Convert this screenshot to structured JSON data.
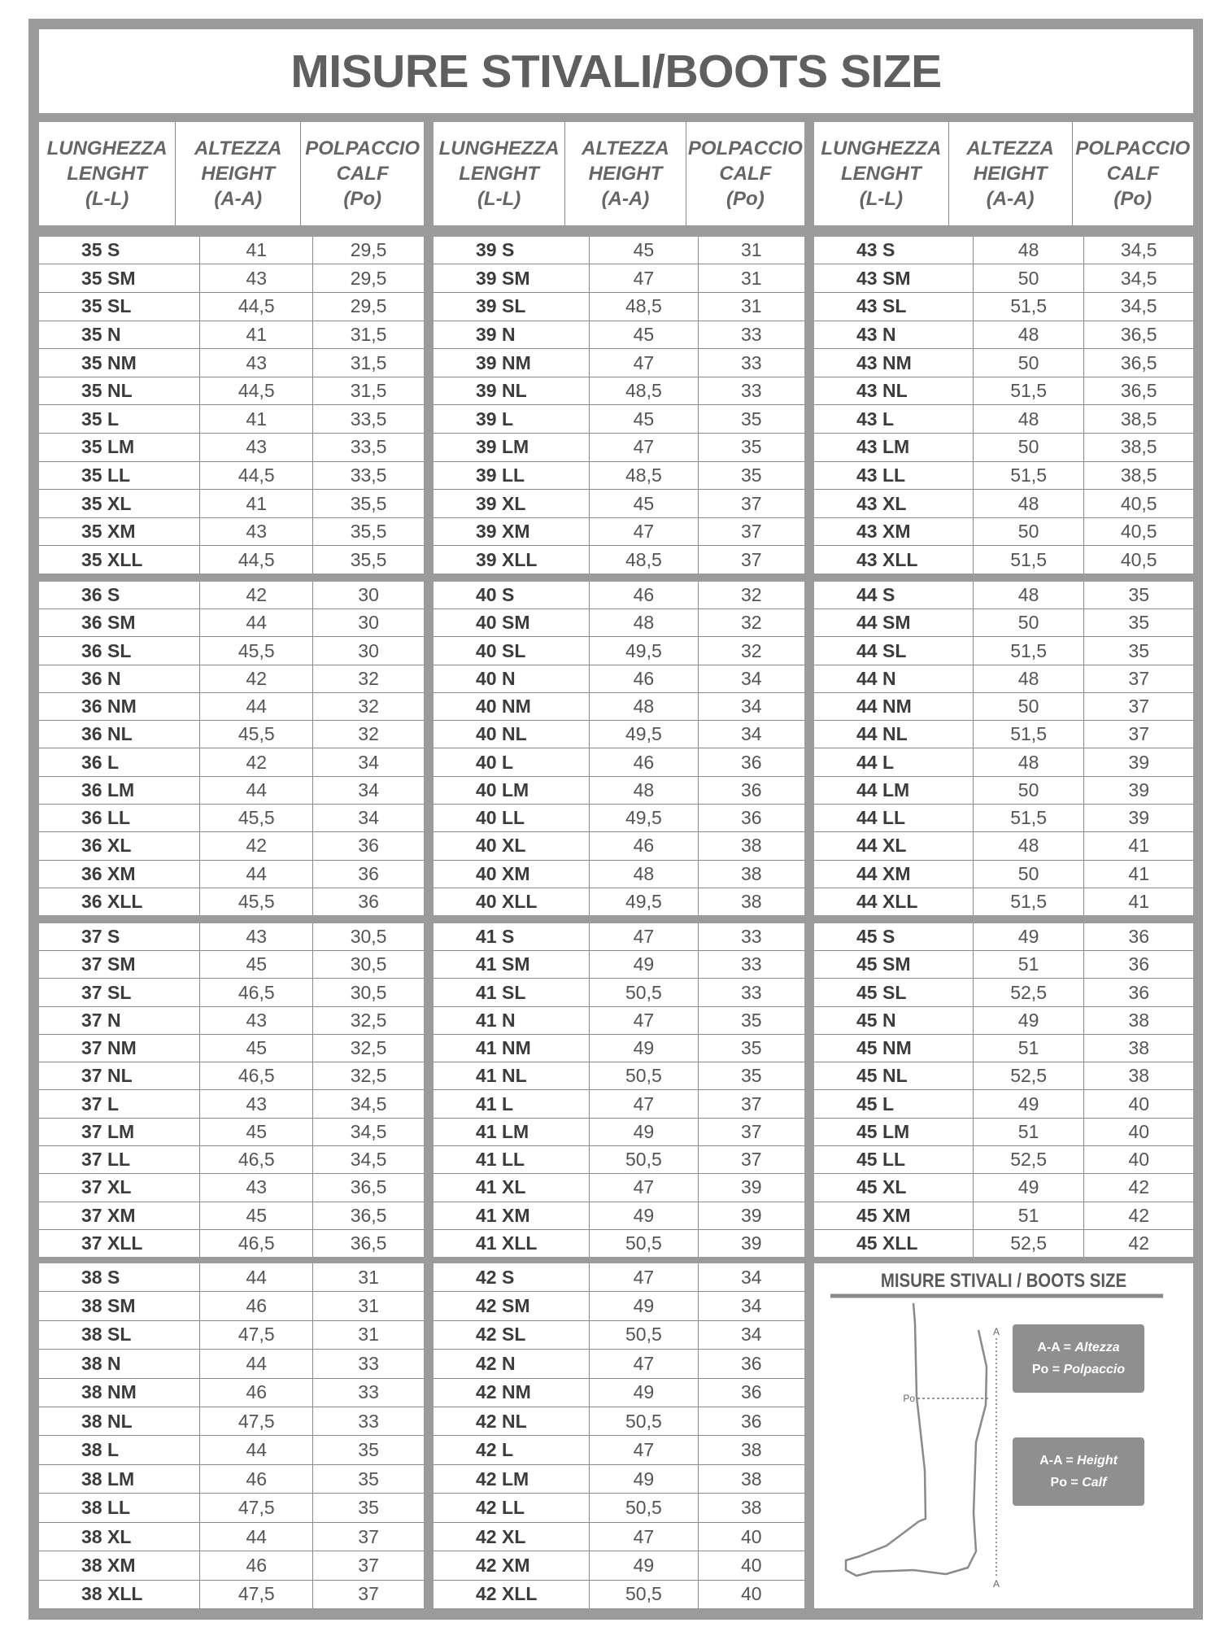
{
  "title": "MISURE STIVALI/BOOTS SIZE",
  "headers": [
    [
      "LUNGHEZZA",
      "LENGHT",
      "(L-L)"
    ],
    [
      "ALTEZZA",
      "HEIGHT",
      "(A-A)"
    ],
    [
      "POLPACCIO",
      "CALF",
      "(Po)"
    ]
  ],
  "colors": {
    "frame": "#9b9b9b",
    "text": "#5f5f5f",
    "legend_box": "#8f8f90"
  },
  "blocks": [
    [
      [
        "35 S",
        "41",
        "29,5"
      ],
      [
        "35 SM",
        "43",
        "29,5"
      ],
      [
        "35 SL",
        "44,5",
        "29,5"
      ],
      [
        "35 N",
        "41",
        "31,5"
      ],
      [
        "35 NM",
        "43",
        "31,5"
      ],
      [
        "35 NL",
        "44,5",
        "31,5"
      ],
      [
        "35 L",
        "41",
        "33,5"
      ],
      [
        "35 LM",
        "43",
        "33,5"
      ],
      [
        "35 LL",
        "44,5",
        "33,5"
      ],
      [
        "35 XL",
        "41",
        "35,5"
      ],
      [
        "35 XM",
        "43",
        "35,5"
      ],
      [
        "35 XLL",
        "44,5",
        "35,5"
      ]
    ],
    [
      [
        "36 S",
        "42",
        "30"
      ],
      [
        "36 SM",
        "44",
        "30"
      ],
      [
        "36 SL",
        "45,5",
        "30"
      ],
      [
        "36 N",
        "42",
        "32"
      ],
      [
        "36 NM",
        "44",
        "32"
      ],
      [
        "36 NL",
        "45,5",
        "32"
      ],
      [
        "36 L",
        "42",
        "34"
      ],
      [
        "36 LM",
        "44",
        "34"
      ],
      [
        "36 LL",
        "45,5",
        "34"
      ],
      [
        "36 XL",
        "42",
        "36"
      ],
      [
        "36 XM",
        "44",
        "36"
      ],
      [
        "36 XLL",
        "45,5",
        "36"
      ]
    ],
    [
      [
        "37 S",
        "43",
        "30,5"
      ],
      [
        "37 SM",
        "45",
        "30,5"
      ],
      [
        "37 SL",
        "46,5",
        "30,5"
      ],
      [
        "37 N",
        "43",
        "32,5"
      ],
      [
        "37 NM",
        "45",
        "32,5"
      ],
      [
        "37 NL",
        "46,5",
        "32,5"
      ],
      [
        "37 L",
        "43",
        "34,5"
      ],
      [
        "37 LM",
        "45",
        "34,5"
      ],
      [
        "37 LL",
        "46,5",
        "34,5"
      ],
      [
        "37 XL",
        "43",
        "36,5"
      ],
      [
        "37 XM",
        "45",
        "36,5"
      ],
      [
        "37 XLL",
        "46,5",
        "36,5"
      ]
    ],
    [
      [
        "38 S",
        "44",
        "31"
      ],
      [
        "38 SM",
        "46",
        "31"
      ],
      [
        "38 SL",
        "47,5",
        "31"
      ],
      [
        "38 N",
        "44",
        "33"
      ],
      [
        "38 NM",
        "46",
        "33"
      ],
      [
        "38 NL",
        "47,5",
        "33"
      ],
      [
        "38 L",
        "44",
        "35"
      ],
      [
        "38 LM",
        "46",
        "35"
      ],
      [
        "38 LL",
        "47,5",
        "35"
      ],
      [
        "38 XL",
        "44",
        "37"
      ],
      [
        "38 XM",
        "46",
        "37"
      ],
      [
        "38 XLL",
        "47,5",
        "37"
      ]
    ],
    [
      [
        "39 S",
        "45",
        "31"
      ],
      [
        "39 SM",
        "47",
        "31"
      ],
      [
        "39 SL",
        "48,5",
        "31"
      ],
      [
        "39 N",
        "45",
        "33"
      ],
      [
        "39 NM",
        "47",
        "33"
      ],
      [
        "39 NL",
        "48,5",
        "33"
      ],
      [
        "39 L",
        "45",
        "35"
      ],
      [
        "39 LM",
        "47",
        "35"
      ],
      [
        "39 LL",
        "48,5",
        "35"
      ],
      [
        "39 XL",
        "45",
        "37"
      ],
      [
        "39 XM",
        "47",
        "37"
      ],
      [
        "39 XLL",
        "48,5",
        "37"
      ]
    ],
    [
      [
        "40 S",
        "46",
        "32"
      ],
      [
        "40 SM",
        "48",
        "32"
      ],
      [
        "40 SL",
        "49,5",
        "32"
      ],
      [
        "40 N",
        "46",
        "34"
      ],
      [
        "40 NM",
        "48",
        "34"
      ],
      [
        "40 NL",
        "49,5",
        "34"
      ],
      [
        "40 L",
        "46",
        "36"
      ],
      [
        "40 LM",
        "48",
        "36"
      ],
      [
        "40 LL",
        "49,5",
        "36"
      ],
      [
        "40 XL",
        "46",
        "38"
      ],
      [
        "40 XM",
        "48",
        "38"
      ],
      [
        "40 XLL",
        "49,5",
        "38"
      ]
    ],
    [
      [
        "41 S",
        "47",
        "33"
      ],
      [
        "41 SM",
        "49",
        "33"
      ],
      [
        "41 SL",
        "50,5",
        "33"
      ],
      [
        "41 N",
        "47",
        "35"
      ],
      [
        "41 NM",
        "49",
        "35"
      ],
      [
        "41 NL",
        "50,5",
        "35"
      ],
      [
        "41 L",
        "47",
        "37"
      ],
      [
        "41 LM",
        "49",
        "37"
      ],
      [
        "41 LL",
        "50,5",
        "37"
      ],
      [
        "41 XL",
        "47",
        "39"
      ],
      [
        "41 XM",
        "49",
        "39"
      ],
      [
        "41 XLL",
        "50,5",
        "39"
      ]
    ],
    [
      [
        "42 S",
        "47",
        "34"
      ],
      [
        "42 SM",
        "49",
        "34"
      ],
      [
        "42 SL",
        "50,5",
        "34"
      ],
      [
        "42 N",
        "47",
        "36"
      ],
      [
        "42 NM",
        "49",
        "36"
      ],
      [
        "42 NL",
        "50,5",
        "36"
      ],
      [
        "42 L",
        "47",
        "38"
      ],
      [
        "42 LM",
        "49",
        "38"
      ],
      [
        "42 LL",
        "50,5",
        "38"
      ],
      [
        "42 XL",
        "47",
        "40"
      ],
      [
        "42 XM",
        "49",
        "40"
      ],
      [
        "42 XLL",
        "50,5",
        "40"
      ]
    ],
    [
      [
        "43 S",
        "48",
        "34,5"
      ],
      [
        "43 SM",
        "50",
        "34,5"
      ],
      [
        "43 SL",
        "51,5",
        "34,5"
      ],
      [
        "43 N",
        "48",
        "36,5"
      ],
      [
        "43 NM",
        "50",
        "36,5"
      ],
      [
        "43 NL",
        "51,5",
        "36,5"
      ],
      [
        "43 L",
        "48",
        "38,5"
      ],
      [
        "43 LM",
        "50",
        "38,5"
      ],
      [
        "43 LL",
        "51,5",
        "38,5"
      ],
      [
        "43 XL",
        "48",
        "40,5"
      ],
      [
        "43 XM",
        "50",
        "40,5"
      ],
      [
        "43 XLL",
        "51,5",
        "40,5"
      ]
    ],
    [
      [
        "44 S",
        "48",
        "35"
      ],
      [
        "44 SM",
        "50",
        "35"
      ],
      [
        "44 SL",
        "51,5",
        "35"
      ],
      [
        "44 N",
        "48",
        "37"
      ],
      [
        "44 NM",
        "50",
        "37"
      ],
      [
        "44 NL",
        "51,5",
        "37"
      ],
      [
        "44 L",
        "48",
        "39"
      ],
      [
        "44 LM",
        "50",
        "39"
      ],
      [
        "44 LL",
        "51,5",
        "39"
      ],
      [
        "44 XL",
        "48",
        "41"
      ],
      [
        "44 XM",
        "50",
        "41"
      ],
      [
        "44 XLL",
        "51,5",
        "41"
      ]
    ],
    [
      [
        "45 S",
        "49",
        "36"
      ],
      [
        "45 SM",
        "51",
        "36"
      ],
      [
        "45 SL",
        "52,5",
        "36"
      ],
      [
        "45 N",
        "49",
        "38"
      ],
      [
        "45 NM",
        "51",
        "38"
      ],
      [
        "45 NL",
        "52,5",
        "38"
      ],
      [
        "45 L",
        "49",
        "40"
      ],
      [
        "45 LM",
        "51",
        "40"
      ],
      [
        "45 LL",
        "52,5",
        "40"
      ],
      [
        "45 XL",
        "49",
        "42"
      ],
      [
        "45 XM",
        "51",
        "42"
      ],
      [
        "45 XLL",
        "52,5",
        "42"
      ]
    ]
  ],
  "diagram": {
    "title": "MISURE STIVALI / BOOTS SIZE",
    "label_a": "A",
    "label_po": "Po",
    "legend_it": {
      "aa_key": "A-A =",
      "aa_val": "Altezza",
      "po_key": "Po =",
      "po_val": "Polpaccio"
    },
    "legend_en": {
      "aa_key": "A-A =",
      "aa_val": "Height",
      "po_key": "Po =",
      "po_val": "Calf"
    }
  }
}
